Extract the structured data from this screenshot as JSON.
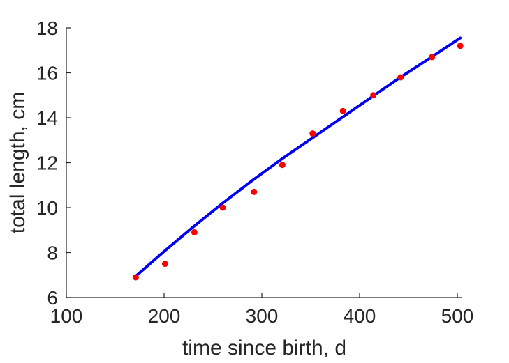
{
  "chart_data": {
    "type": "scatter",
    "title": "",
    "xlabel": "time since birth, d",
    "ylabel": "total length, cm",
    "xlim": [
      100,
      505
    ],
    "ylim": [
      6,
      18
    ],
    "xticks": [
      100,
      200,
      300,
      400,
      500
    ],
    "yticks": [
      6,
      8,
      10,
      12,
      14,
      16,
      18
    ],
    "grid": false,
    "series": [
      {
        "kind": "points",
        "color": "#ff0000",
        "x": [
          171,
          201,
          231,
          260,
          292,
          321,
          352,
          383,
          414,
          442,
          474,
          503
        ],
        "y": [
          6.9,
          7.5,
          8.9,
          10.0,
          10.7,
          11.9,
          13.3,
          14.3,
          15.0,
          15.8,
          16.7,
          17.2
        ]
      },
      {
        "kind": "line",
        "color": "#0000ee",
        "x": [
          171,
          200,
          230,
          260,
          290,
          320,
          350,
          380,
          410,
          440,
          470,
          503
        ],
        "y": [
          6.95,
          8.05,
          9.15,
          10.2,
          11.2,
          12.15,
          13.05,
          13.95,
          14.85,
          15.75,
          16.6,
          17.55
        ]
      }
    ]
  }
}
